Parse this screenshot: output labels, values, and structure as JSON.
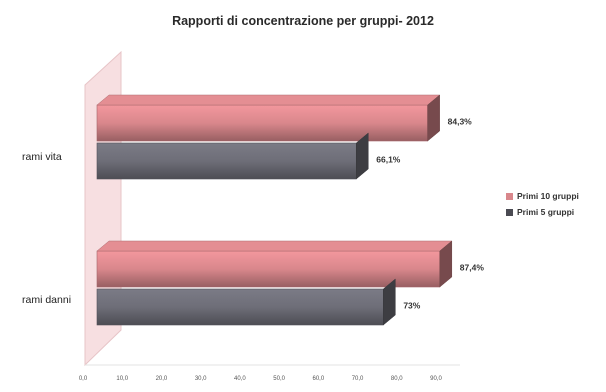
{
  "chart_data": {
    "type": "bar",
    "orientation": "horizontal",
    "title": "Rapporti di concentrazione per gruppi- 2012",
    "categories": [
      "rami vita",
      "rami danni"
    ],
    "series": [
      {
        "name": "Primi 10 gruppi",
        "values": [
          84.3,
          87.4
        ],
        "labels": [
          "84,3%",
          "87,4%"
        ],
        "color": "#d9878c"
      },
      {
        "name": "Primi 5 gruppi",
        "values": [
          66.1,
          73.0
        ],
        "labels": [
          "66,1%",
          "73%"
        ],
        "color": "#6e6e78"
      }
    ],
    "xlim": [
      0,
      90
    ],
    "xticks": [
      "0,0",
      "10,0",
      "20,0",
      "30,0",
      "40,0",
      "50,0",
      "60,0",
      "70,0",
      "80,0",
      "90,0"
    ],
    "grid": false,
    "legend_position": "right",
    "three_d": true
  }
}
